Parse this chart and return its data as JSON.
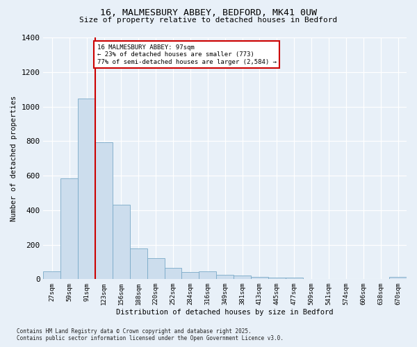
{
  "title_line1": "16, MALMESBURY ABBEY, BEDFORD, MK41 0UW",
  "title_line2": "Size of property relative to detached houses in Bedford",
  "xlabel": "Distribution of detached houses by size in Bedford",
  "ylabel": "Number of detached properties",
  "bar_color": "#ccdded",
  "bar_edge_color": "#7aaac8",
  "bg_color": "#e8f0f8",
  "grid_color": "#ffffff",
  "categories": [
    "27sqm",
    "59sqm",
    "91sqm",
    "123sqm",
    "156sqm",
    "188sqm",
    "220sqm",
    "252sqm",
    "284sqm",
    "316sqm",
    "349sqm",
    "381sqm",
    "413sqm",
    "445sqm",
    "477sqm",
    "509sqm",
    "541sqm",
    "574sqm",
    "606sqm",
    "638sqm",
    "670sqm"
  ],
  "values": [
    47,
    585,
    1047,
    793,
    430,
    180,
    120,
    65,
    40,
    47,
    25,
    22,
    15,
    10,
    8,
    0,
    0,
    0,
    0,
    0,
    12
  ],
  "ylim": [
    0,
    1400
  ],
  "yticks": [
    0,
    200,
    400,
    600,
    800,
    1000,
    1200,
    1400
  ],
  "vline_x": 2.5,
  "vline_color": "#cc0000",
  "annotation_text": "16 MALMESBURY ABBEY: 97sqm\n← 23% of detached houses are smaller (773)\n77% of semi-detached houses are larger (2,584) →",
  "annotation_box_color": "#ffffff",
  "annotation_box_edge": "#cc0000",
  "footer_line1": "Contains HM Land Registry data © Crown copyright and database right 2025.",
  "footer_line2": "Contains public sector information licensed under the Open Government Licence v3.0."
}
